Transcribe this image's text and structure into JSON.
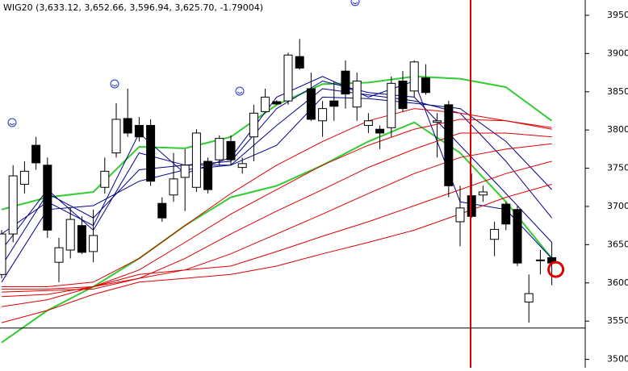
{
  "chart_data": {
    "type": "candlestick",
    "title": "WIG20 (3,633.12, 3,652.66, 3,596.94, 3,625.70, -1.79004)",
    "open": [
      3611,
      3664,
      3729,
      3780,
      3754,
      3627,
      3643,
      3675,
      3641,
      3725,
      3770,
      3815,
      3806,
      3806,
      3704,
      3715,
      3738,
      3725,
      3759,
      3761,
      3785,
      3751,
      3791,
      3824,
      3837,
      3838,
      3896,
      3854,
      3812,
      3838,
      3877,
      3830,
      3806,
      3801,
      3803,
      3864,
      3851,
      3868,
      3810,
      3833,
      3680,
      3714,
      3715,
      3657,
      3703,
      3696,
      3575,
      3629,
      3633
    ],
    "high": [
      3669,
      3754,
      3759,
      3791,
      3764,
      3659,
      3698,
      3687,
      3696,
      3764,
      3835,
      3854,
      3817,
      3814,
      3712,
      3770,
      3775,
      3801,
      3764,
      3793,
      3793,
      3764,
      3833,
      3854,
      3839,
      3901,
      3919,
      3875,
      3838,
      3864,
      3891,
      3875,
      3822,
      3806,
      3870,
      3877,
      3891,
      3886,
      3822,
      3838,
      3727,
      3743,
      3727,
      3680,
      3706,
      3701,
      3611,
      3643,
      3653
    ],
    "low": [
      3606,
      3653,
      3717,
      3748,
      3659,
      3601,
      3632,
      3638,
      3627,
      3717,
      3764,
      3791,
      3785,
      3727,
      3680,
      3706,
      3694,
      3719,
      3717,
      3754,
      3754,
      3743,
      3759,
      3822,
      3833,
      3833,
      3879,
      3812,
      3791,
      3812,
      3828,
      3812,
      3796,
      3775,
      3791,
      3824,
      3843,
      3846,
      3764,
      3712,
      3648,
      3685,
      3706,
      3635,
      3669,
      3622,
      3548,
      3611,
      3597
    ],
    "close": [
      3664,
      3740,
      3746,
      3757,
      3669,
      3646,
      3683,
      3640,
      3662,
      3746,
      3814,
      3796,
      3791,
      3733,
      3685,
      3736,
      3754,
      3796,
      3722,
      3789,
      3761,
      3756,
      3822,
      3843,
      3834,
      3898,
      3881,
      3814,
      3828,
      3831,
      3847,
      3864,
      3812,
      3796,
      3861,
      3828,
      3889,
      3849,
      3812,
      3727,
      3698,
      3687,
      3719,
      3670,
      3677,
      3626,
      3586,
      3630,
      3626
    ],
    "up_color": "#ffffff",
    "down_color": "#000000",
    "lines": [
      {
        "color": "#33cc33",
        "width": 2,
        "values": [
          3696,
          3712,
          3719,
          3778,
          3776,
          3791,
          3833,
          3860,
          3862,
          3870,
          3867,
          3856,
          3812
        ]
      },
      {
        "color": "#33cc33",
        "width": 2,
        "values": [
          3522,
          3564,
          3595,
          3632,
          3675,
          3712,
          3727,
          3754,
          3785,
          3810,
          3770,
          3706,
          3632
        ]
      },
      {
        "color": "#00008b",
        "width": 1,
        "values": [
          3664,
          3706,
          3675,
          3796,
          3743,
          3764,
          3843,
          3870,
          3843,
          3864,
          3706,
          3696,
          3632
        ]
      },
      {
        "color": "#00008b",
        "width": 1,
        "values": [
          3643,
          3722,
          3669,
          3770,
          3754,
          3759,
          3828,
          3864,
          3849,
          3843,
          3780,
          3717,
          3653
        ]
      },
      {
        "color": "#00008b",
        "width": 1,
        "values": [
          3622,
          3717,
          3685,
          3748,
          3754,
          3754,
          3806,
          3854,
          3846,
          3838,
          3822,
          3759,
          3685
        ]
      },
      {
        "color": "#00008b",
        "width": 1,
        "values": [
          3601,
          3696,
          3701,
          3733,
          3748,
          3754,
          3780,
          3843,
          3841,
          3835,
          3828,
          3785,
          3722
        ]
      },
      {
        "color": "#dd0000",
        "width": 1,
        "values": [
          3595,
          3595,
          3601,
          3632,
          3675,
          3717,
          3754,
          3785,
          3812,
          3828,
          3822,
          3812,
          3803
        ]
      },
      {
        "color": "#dd0000",
        "width": 1,
        "values": [
          3592,
          3592,
          3595,
          3617,
          3653,
          3690,
          3722,
          3754,
          3780,
          3801,
          3814,
          3812,
          3801
        ]
      },
      {
        "color": "#dd0000",
        "width": 1,
        "values": [
          3588,
          3590,
          3592,
          3606,
          3632,
          3664,
          3694,
          3722,
          3751,
          3775,
          3796,
          3796,
          3791
        ]
      },
      {
        "color": "#dd0000",
        "width": 1,
        "values": [
          3582,
          3585,
          3595,
          3606,
          3617,
          3638,
          3664,
          3690,
          3717,
          3743,
          3764,
          3775,
          3782
        ]
      },
      {
        "color": "#dd0000",
        "width": 1,
        "values": [
          3569,
          3578,
          3595,
          3611,
          3617,
          3622,
          3641,
          3661,
          3680,
          3701,
          3722,
          3743,
          3759
        ]
      },
      {
        "color": "#dd0000",
        "width": 1,
        "values": [
          3548,
          3564,
          3585,
          3601,
          3606,
          3611,
          3622,
          3638,
          3653,
          3669,
          3690,
          3712,
          3729
        ]
      }
    ],
    "hline": 3541,
    "ylim": [
      3489,
      3970
    ],
    "yticks": [
      3500,
      3550,
      3600,
      3650,
      3700,
      3750,
      3800,
      3850,
      3900,
      3950
    ]
  }
}
